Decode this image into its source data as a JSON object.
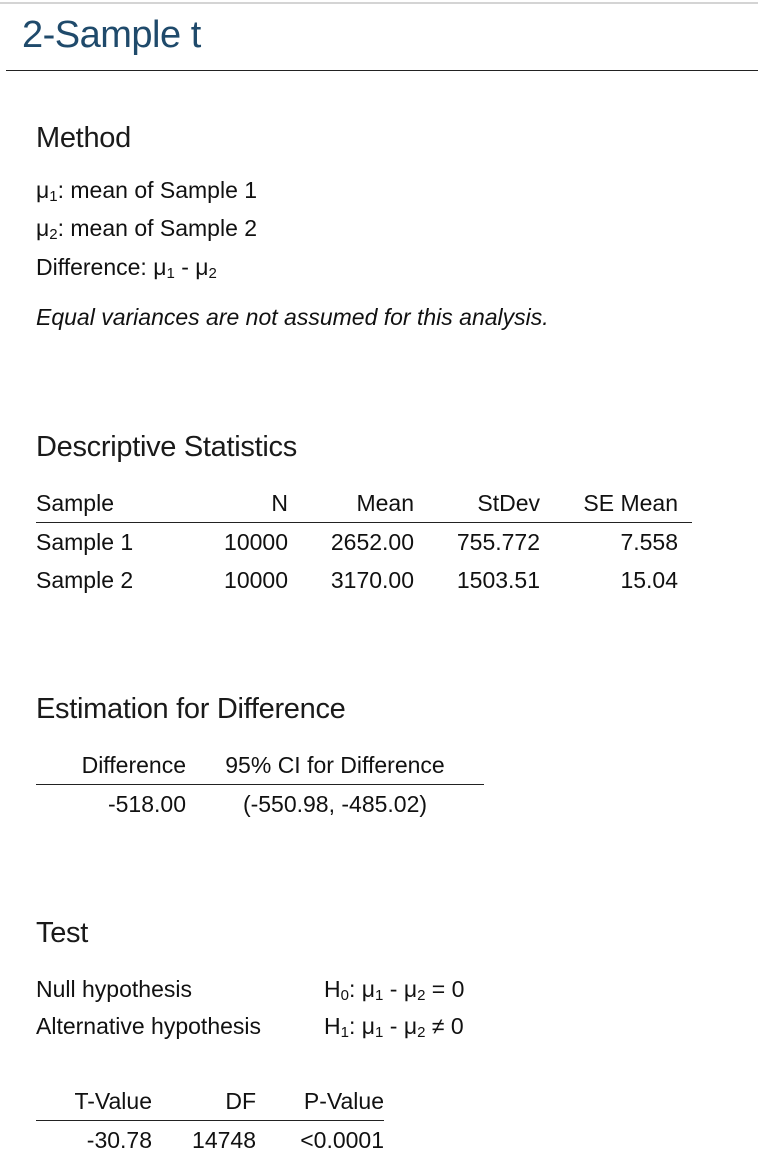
{
  "title": "2-Sample t",
  "method": {
    "heading": "Method",
    "mu1_symbol": "μ",
    "mu1_sub": "1",
    "mu1_text": ": mean of Sample 1",
    "mu2_symbol": "μ",
    "mu2_sub": "2",
    "mu2_text": ": mean of Sample 2",
    "difference_label": "Difference: ",
    "difference_a": "μ",
    "difference_a_sub": "1",
    "difference_op": " - ",
    "difference_b": "μ",
    "difference_b_sub": "2",
    "note": "Equal variances are not assumed for this analysis."
  },
  "descriptive": {
    "heading": "Descriptive Statistics",
    "columns": [
      "Sample",
      "N",
      "Mean",
      "StDev",
      "SE Mean"
    ],
    "rows": [
      [
        "Sample 1",
        "10000",
        "2652.00",
        "755.772",
        "7.558"
      ],
      [
        "Sample 2",
        "10000",
        "3170.00",
        "1503.51",
        "15.04"
      ]
    ]
  },
  "estimation": {
    "heading": "Estimation for Difference",
    "columns": [
      "Difference",
      "95% CI for Difference"
    ],
    "rows": [
      [
        "-518.00",
        "(-550.98, -485.02)"
      ]
    ]
  },
  "test": {
    "heading": "Test",
    "null_label": "Null hypothesis",
    "null_h": "H",
    "null_h_sub": "0",
    "null_colon": ": ",
    "null_mu1": "μ",
    "null_mu1_sub": "1",
    "null_op": " - ",
    "null_mu2": "μ",
    "null_mu2_sub": "2",
    "null_rel": " = 0",
    "alt_label": "Alternative hypothesis",
    "alt_h": "H",
    "alt_h_sub": "1",
    "alt_colon": ": ",
    "alt_mu1": "μ",
    "alt_mu1_sub": "1",
    "alt_op": " - ",
    "alt_mu2": "μ",
    "alt_mu2_sub": "2",
    "alt_rel": " ≠ 0",
    "columns": [
      "T-Value",
      "DF",
      "P-Value"
    ],
    "rows": [
      [
        "-30.78",
        "14748",
        "<0.0001"
      ]
    ]
  }
}
